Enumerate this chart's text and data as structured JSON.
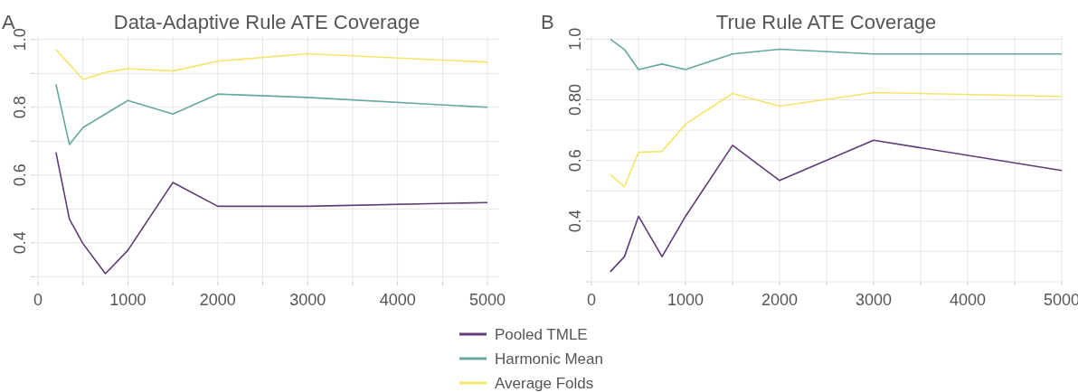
{
  "chart_data": [
    {
      "type": "line",
      "title": "Data-Adaptive Rule ATE Coverage",
      "annotations": [
        "A"
      ],
      "x": [
        200,
        350,
        500,
        750,
        1000,
        1500,
        2000,
        3000,
        5000
      ],
      "xlim": [
        -40,
        5130
      ],
      "xticks": [
        0,
        {
          "value": 500,
          "label": null
        },
        1000,
        {
          "value": 1500,
          "label": null
        },
        2000,
        {
          "value": 2500,
          "label": null
        },
        3000,
        {
          "value": 3500,
          "label": null
        },
        4000,
        {
          "value": 4500,
          "label": null
        },
        5000
      ],
      "ylim": [
        0.285,
        1.01
      ],
      "yticks": [
        {
          "value": 0.3,
          "label": null
        },
        0.4,
        {
          "value": 0.5,
          "label": null
        },
        0.6,
        {
          "value": 0.7,
          "label": null
        },
        0.8,
        {
          "value": 0.9,
          "label": null
        },
        {
          "value": 1.0,
          "label": "1.0"
        }
      ],
      "grid": true,
      "legend": "bottom",
      "series": [
        {
          "name": "Pooled TMLE",
          "color": "#5e3c78",
          "values": [
            0.667,
            0.47,
            0.398,
            0.309,
            0.378,
            0.578,
            0.508,
            0.508,
            0.519
          ]
        },
        {
          "name": "Harmonic Mean",
          "color": "#66a89f",
          "values": [
            0.868,
            0.69,
            0.74,
            0.78,
            0.82,
            0.78,
            0.839,
            0.829,
            0.8
          ]
        },
        {
          "name": "Average Folds",
          "color": "#f7e46b",
          "values": [
            0.97,
            0.927,
            0.882,
            0.903,
            0.914,
            0.907,
            0.936,
            0.958,
            0.933
          ]
        }
      ]
    },
    {
      "type": "line",
      "title": "True Rule ATE Coverage",
      "annotations": [
        "B"
      ],
      "x": [
        200,
        350,
        500,
        750,
        1000,
        1500,
        2000,
        3000,
        5000
      ],
      "xlim": [
        -20,
        5010
      ],
      "xticks": [
        0,
        {
          "value": 500,
          "label": null
        },
        1000,
        {
          "value": 1500,
          "label": null
        },
        2000,
        {
          "value": 2500,
          "label": null
        },
        3000,
        {
          "value": 3500,
          "label": null
        },
        4000,
        {
          "value": 4500,
          "label": null
        },
        5000
      ],
      "ylim": [
        0.2,
        1.01
      ],
      "yticks": [
        {
          "value": 0.2,
          "label": null
        },
        {
          "value": 0.3,
          "label": null
        },
        0.4,
        {
          "value": 0.5,
          "label": null
        },
        0.6,
        {
          "value": 0.7,
          "label": null
        },
        {
          "value": 0.8,
          "label": "0.80"
        },
        {
          "value": 0.9,
          "label": null
        },
        {
          "value": 1.0,
          "label": "1.0"
        }
      ],
      "grid": true,
      "series": [
        {
          "color": "#5e3c78",
          "values": [
            0.233,
            0.283,
            0.416,
            0.283,
            0.416,
            0.65,
            0.534,
            0.667,
            0.567
          ]
        },
        {
          "color": "#66a89f",
          "values": [
            1.0,
            0.966,
            0.9,
            0.918,
            0.9,
            0.951,
            0.967,
            0.951,
            0.951
          ]
        },
        {
          "color": "#f7e46b",
          "values": [
            0.554,
            0.514,
            0.627,
            0.63,
            0.72,
            0.821,
            0.779,
            0.824,
            0.811
          ]
        }
      ]
    }
  ]
}
